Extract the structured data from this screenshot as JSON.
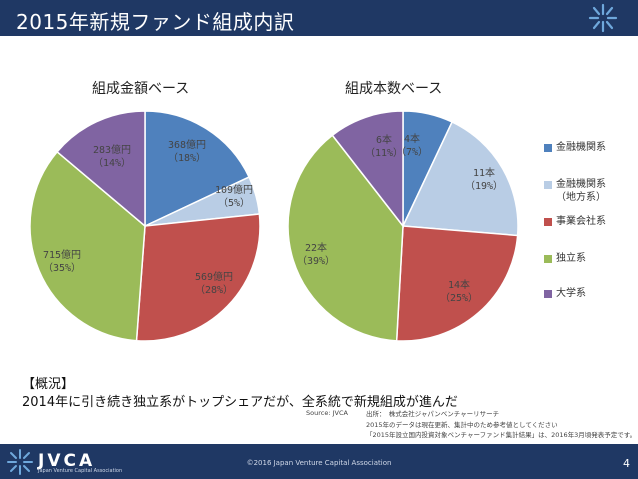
{
  "page": {
    "title": "2015年新規ファンド組成内訳"
  },
  "chart_data": [
    {
      "type": "pie",
      "title": "組成金額ベース",
      "categories": [
        "金融機関系",
        "金融機関系（地方系）",
        "事業会社系",
        "独立系",
        "大学系"
      ],
      "values": [
        368,
        109,
        569,
        715,
        283
      ],
      "value_labels": [
        "368億円",
        "109億円",
        "569億円",
        "715億円",
        "283億円"
      ],
      "percent_labels": [
        "（18%）",
        "（5%）",
        "（28%）",
        "（35%）",
        "（14%）"
      ]
    },
    {
      "type": "pie",
      "title": "組成本数ベース",
      "categories": [
        "金融機関系",
        "金融機関系（地方系）",
        "事業会社系",
        "独立系",
        "大学系"
      ],
      "values": [
        4,
        11,
        14,
        22,
        6
      ],
      "value_labels": [
        "4本",
        "11本",
        "14本",
        "22本",
        "6本"
      ],
      "percent_labels": [
        "（7%）",
        "（19%）",
        "（25%）",
        "（39%）",
        "（11%）"
      ]
    }
  ],
  "legend": {
    "items": [
      {
        "label": "金融機関系",
        "label2": "",
        "color": "#4f81bd"
      },
      {
        "label": "金融機関系",
        "label2": "（地方系）",
        "color": "#b9cde5"
      },
      {
        "label": "事業会社系",
        "label2": "",
        "color": "#c0504d"
      },
      {
        "label": "独立系",
        "label2": "",
        "color": "#9bbb59"
      },
      {
        "label": "大学系",
        "label2": "",
        "color": "#8064a2"
      }
    ]
  },
  "summary": {
    "heading": "【概況】",
    "text": "2014年に引き続き独立系がトップシェアだが、全系統で新規組成が進んだ"
  },
  "source": {
    "label": "Source: JVCA",
    "note1": "出所：　株式会社ジャパンベンチャーリサーチ",
    "note2": "2015年のデータは現在更新、集計中のため参考値としてください",
    "note3": "「2015年設立国内投資対象ベンチャーファンド集計結果」は、2016年3月頃発表予定です。"
  },
  "footer": {
    "brand": "JVCA",
    "brand_sub": "Japan Venture Capital Association",
    "copyright": "©2016 Japan Venture Capital Association",
    "page_number": "4"
  }
}
